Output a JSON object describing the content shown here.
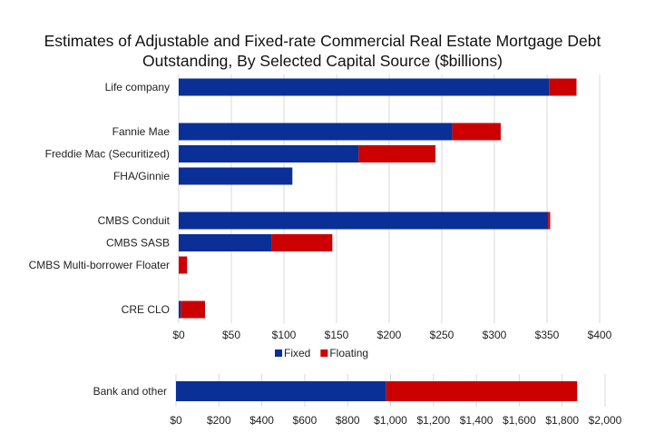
{
  "title_line1": "Estimates of Adjustable and Fixed-rate Commercial Real Estate Mortgage Debt",
  "title_line2": "Outstanding, By Selected Capital Source ($billions)",
  "colors": {
    "fixed": "#0a2f96",
    "floating": "#cc0000",
    "grid": "#d9d9d9"
  },
  "legend": [
    {
      "label": "Fixed",
      "color": "#0a2f96"
    },
    {
      "label": "Floating",
      "color": "#cc0000"
    }
  ],
  "chart_data": [
    {
      "type": "bar",
      "orientation": "horizontal",
      "stacked": true,
      "categories": [
        "Life company",
        "",
        "Fannie Mae",
        "Freddie Mac (Securitized)",
        "FHA/Ginnie",
        "",
        "CMBS Conduit",
        "CMBS SASB",
        "CMBS Multi-borrower Floater",
        "",
        "CRE CLO"
      ],
      "series": [
        {
          "name": "Fixed",
          "values": [
            352,
            null,
            260,
            171,
            108,
            null,
            351,
            88,
            0,
            null,
            2
          ]
        },
        {
          "name": "Floating",
          "values": [
            26,
            null,
            46,
            73,
            0,
            null,
            2,
            58,
            8,
            null,
            23
          ]
        }
      ],
      "xlim": [
        0,
        400
      ],
      "xticks": [
        "$0",
        "$50",
        "$100",
        "$150",
        "$200",
        "$250",
        "$300",
        "$350",
        "$400"
      ],
      "xtick_values": [
        0,
        50,
        100,
        150,
        200,
        250,
        300,
        350,
        400
      ],
      "grid": true,
      "legend_position": "bottom"
    },
    {
      "type": "bar",
      "orientation": "horizontal",
      "stacked": true,
      "categories": [
        "Bank and other"
      ],
      "series": [
        {
          "name": "Fixed",
          "values": [
            980
          ]
        },
        {
          "name": "Floating",
          "values": [
            890
          ]
        }
      ],
      "xlim": [
        0,
        2000
      ],
      "xticks": [
        "$0",
        "$200",
        "$400",
        "$600",
        "$800",
        "$1,000",
        "$1,200",
        "$1,400",
        "$1,600",
        "$1,800",
        "$2,000"
      ],
      "xtick_values": [
        0,
        200,
        400,
        600,
        800,
        1000,
        1200,
        1400,
        1600,
        1800,
        2000
      ],
      "grid": true
    }
  ]
}
